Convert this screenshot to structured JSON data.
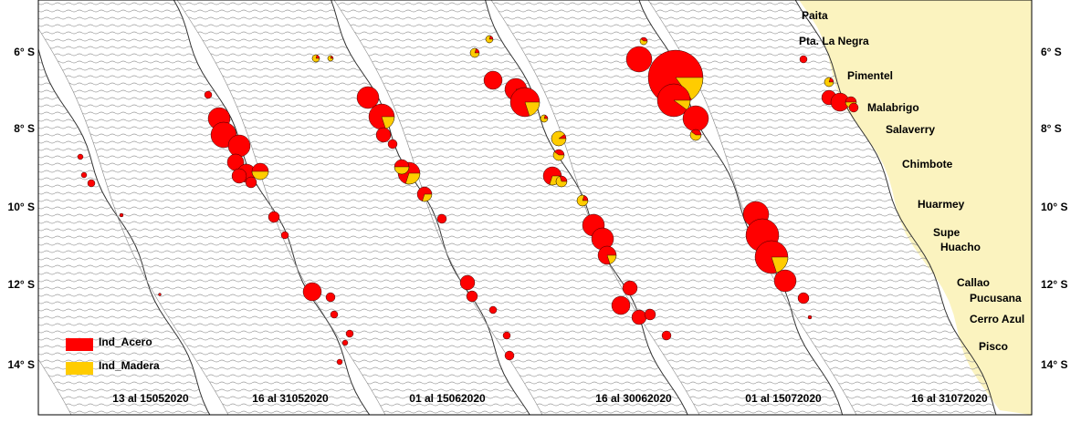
{
  "map": {
    "latitude_labels_left": [
      "6° S",
      "8° S",
      "10° S",
      "12° S",
      "14° S"
    ],
    "latitude_labels_right": [
      "6° S",
      "8° S",
      "10° S",
      "12° S",
      "14° S"
    ],
    "periods": [
      "13 al 15052020",
      "16 al 31052020",
      "01 al 15062020",
      "16 al 30062020",
      "01 al 15072020",
      "16 al 31072020"
    ],
    "places": [
      "Paita",
      "Pta. La Negra",
      "Pimentel",
      "Malabrigo",
      "Salaverry",
      "Chimbote",
      "Huarmey",
      "Supe",
      "Huacho",
      "Callao",
      "Pucusana",
      "Cerro Azul",
      "Pisco"
    ],
    "legend": [
      {
        "label": "Ind_Acero",
        "color": "#ff0000"
      },
      {
        "label": "Ind_Madera",
        "color": "#ffcc00"
      }
    ]
  }
}
